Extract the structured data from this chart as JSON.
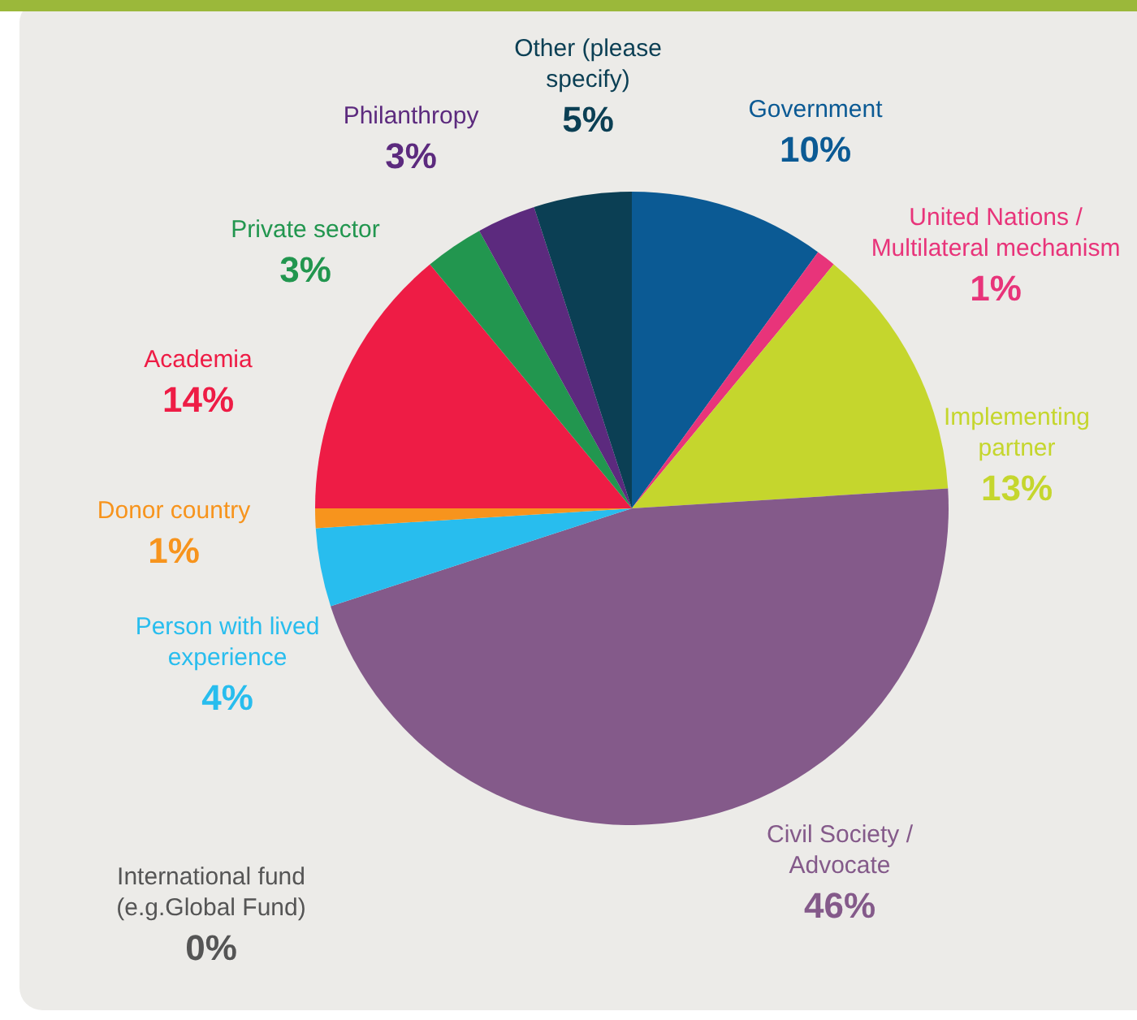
{
  "chart_data": {
    "type": "pie",
    "categories": [
      "Government",
      "United Nations / Multilateral mechanism",
      "Implementing partner",
      "Civil Society / Advocate",
      "International fund (e.g.Global Fund)",
      "Person with lived experience",
      "Donor country",
      "Academia",
      "Private sector",
      "Philanthropy",
      "Other (please specify)"
    ],
    "values": [
      10,
      1,
      13,
      46,
      0,
      4,
      1,
      14,
      3,
      3,
      5
    ],
    "value_labels": [
      "10%",
      "1%",
      "13%",
      "46%",
      "0%",
      "4%",
      "1%",
      "14%",
      "3%",
      "3%",
      "5%"
    ],
    "colors": [
      "#0b5a94",
      "#e8347a",
      "#c5d62d",
      "#845a8a",
      "#555555",
      "#28bdee",
      "#f7941d",
      "#ee1c45",
      "#22964f",
      "#5c2a7e",
      "#0b3f54"
    ],
    "legend": false
  }
}
